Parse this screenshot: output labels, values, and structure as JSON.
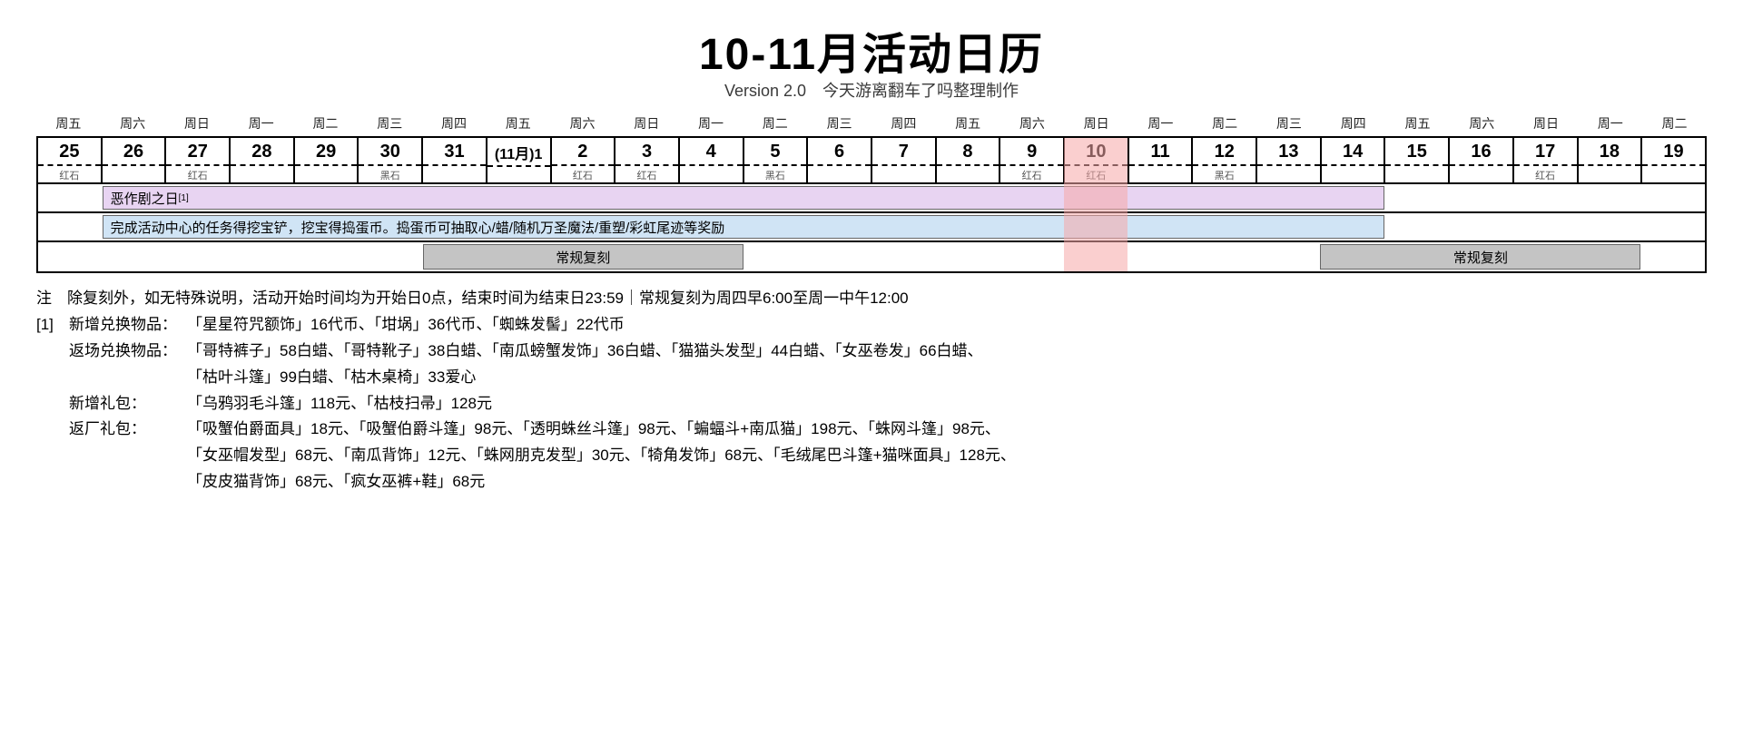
{
  "header": {
    "title": "10-11月活动日历",
    "subtitle": "Version 2.0　今天游离翻车了吗整理制作"
  },
  "colors": {
    "event_purple": "#e8d4f2",
    "event_blue": "#d0e4f5",
    "event_gray": "#c4c4c4",
    "highlight": "#f5a7a7",
    "border": "#000000",
    "text": "#000000",
    "bg": "#ffffff"
  },
  "layout": {
    "num_days": 26,
    "highlight_index": 16
  },
  "weekdays": [
    "周五",
    "周六",
    "周日",
    "周一",
    "周二",
    "周三",
    "周四",
    "周五",
    "周六",
    "周日",
    "周一",
    "周二",
    "周三",
    "周四",
    "周五",
    "周六",
    "周日",
    "周一",
    "周二",
    "周三",
    "周四",
    "周五",
    "周六",
    "周日",
    "周一",
    "周二"
  ],
  "dates": [
    {
      "num": "25",
      "stone": "红石"
    },
    {
      "num": "26",
      "stone": ""
    },
    {
      "num": "27",
      "stone": "红石"
    },
    {
      "num": "28",
      "stone": ""
    },
    {
      "num": "29",
      "stone": ""
    },
    {
      "num": "30",
      "stone": "黑石"
    },
    {
      "num": "31",
      "stone": ""
    },
    {
      "num": "(11月)1",
      "stone": ""
    },
    {
      "num": "2",
      "stone": "红石"
    },
    {
      "num": "3",
      "stone": "红石"
    },
    {
      "num": "4",
      "stone": ""
    },
    {
      "num": "5",
      "stone": "黑石"
    },
    {
      "num": "6",
      "stone": ""
    },
    {
      "num": "7",
      "stone": ""
    },
    {
      "num": "8",
      "stone": ""
    },
    {
      "num": "9",
      "stone": "红石"
    },
    {
      "num": "10",
      "stone": "红石"
    },
    {
      "num": "11",
      "stone": ""
    },
    {
      "num": "12",
      "stone": "黑石"
    },
    {
      "num": "13",
      "stone": ""
    },
    {
      "num": "14",
      "stone": ""
    },
    {
      "num": "15",
      "stone": ""
    },
    {
      "num": "16",
      "stone": ""
    },
    {
      "num": "17",
      "stone": "红石"
    },
    {
      "num": "18",
      "stone": ""
    },
    {
      "num": "19",
      "stone": ""
    }
  ],
  "event_tracks": [
    [
      {
        "label": "恶作剧之日",
        "sup": "[1]",
        "start": 1,
        "end": 21,
        "color": "#e8d4f2"
      }
    ],
    [
      {
        "label": "完成活动中心的任务得挖宝铲，挖宝得捣蛋币。捣蛋币可抽取心/蜡/随机万圣魔法/重塑/彩虹尾迹等奖励",
        "sup": "",
        "start": 1,
        "end": 21,
        "color": "#d0e4f5"
      }
    ],
    [
      {
        "label": "常规复刻",
        "sup": "",
        "start": 6,
        "end": 11,
        "color": "#c4c4c4",
        "center": true
      },
      {
        "label": "常规复刻",
        "sup": "",
        "start": 20,
        "end": 25,
        "color": "#c4c4c4",
        "center": true
      }
    ]
  ],
  "notes": {
    "header_line": "注　除复刻外，如无特殊说明，活动开始时间均为开始日0点，结束时间为结束日23:59｜常规复刻为周四早6:00至周一中午12:00",
    "items": [
      {
        "prefix": "[1]",
        "lines": [
          {
            "label": "新增兑换物品：",
            "body": "「星星符咒额饰」16代币、「坩埚」36代币、「蜘蛛发髻」22代币"
          },
          {
            "label": "返场兑换物品：",
            "body": "「哥特裤子」58白蜡、「哥特靴子」38白蜡、「南瓜螃蟹发饰」36白蜡、「猫猫头发型」44白蜡、「女巫卷发」66白蜡、"
          },
          {
            "label": "",
            "body": "「枯叶斗篷」99白蜡、「枯木桌椅」33爱心",
            "indent": true
          },
          {
            "label": "新增礼包：",
            "body": "「乌鸦羽毛斗篷」118元、「枯枝扫帚」128元"
          },
          {
            "label": "返厂礼包：",
            "body": "「吸蟹伯爵面具」18元、「吸蟹伯爵斗篷」98元、「透明蛛丝斗篷」98元、「蝙蝠斗+南瓜猫」198元、「蛛网斗篷」98元、"
          },
          {
            "label": "",
            "body": "「女巫帽发型」68元、「南瓜背饰」12元、「蛛网朋克发型」30元、「犄角发饰」68元、「毛绒尾巴斗篷+猫咪面具」128元、",
            "indent": true
          },
          {
            "label": "",
            "body": "「皮皮猫背饰」68元、「疯女巫裤+鞋」68元",
            "indent": true
          }
        ]
      }
    ]
  }
}
